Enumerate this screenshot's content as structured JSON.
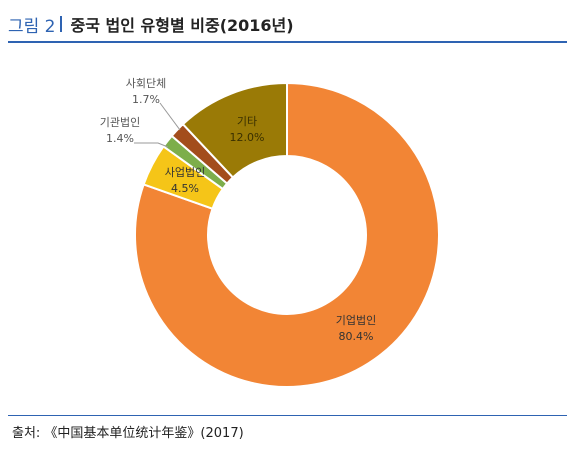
{
  "header": {
    "label": "그림 2",
    "title": "중국 법인 유형별 비중(2016년)"
  },
  "source": {
    "text": "출처: 《中国基本单位统计年鉴》(2017)"
  },
  "chart_data": {
    "type": "pie",
    "style": "donut",
    "title": "중국 법인 유형별 비중(2016년)",
    "categories": [
      "기업법인",
      "사업법인",
      "기관법인",
      "사회단체",
      "기타"
    ],
    "values": [
      80.4,
      4.5,
      1.4,
      1.7,
      12.0
    ],
    "value_labels": [
      "80.4%",
      "4.5%",
      "1.4%",
      "1.7%",
      "12.0%"
    ],
    "colors": [
      "#f28535",
      "#f5c518",
      "#7dae4b",
      "#a34d1c",
      "#9a7a06"
    ],
    "legend": "none",
    "data_labels": true
  }
}
